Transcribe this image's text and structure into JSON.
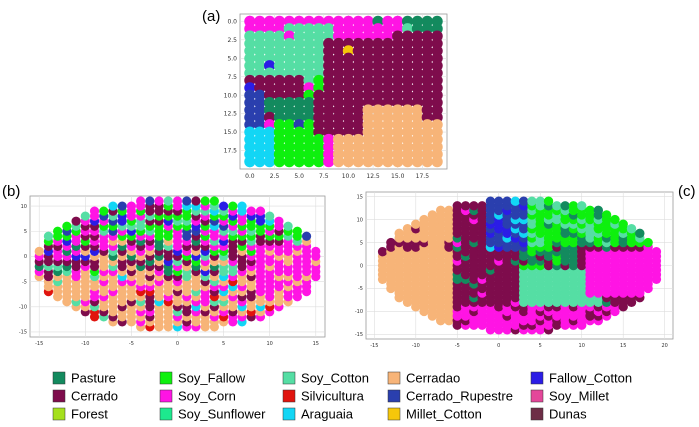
{
  "chart_data": [
    {
      "type": "scatter",
      "panel_label": "(a)",
      "xlim": [
        -1,
        20
      ],
      "ylim": [
        20,
        -1
      ],
      "x_ticks": [
        "0.0",
        "2.5",
        "5.0",
        "7.5",
        "10.0",
        "12.5",
        "15.0",
        "17.5"
      ],
      "x_tick_values": [
        0,
        2.5,
        5,
        7.5,
        10,
        12.5,
        15,
        17.5
      ],
      "y_ticks": [
        "0.0",
        "2.5",
        "5.0",
        "7.5",
        "10.0",
        "12.5",
        "15.0",
        "17.5"
      ],
      "y_tick_values": [
        0,
        2.5,
        5,
        7.5,
        10,
        12.5,
        15,
        17.5
      ],
      "grid": true,
      "grid_size": [
        20,
        20
      ],
      "background_class": "Soy_Corn"
    },
    {
      "type": "scatter",
      "panel_label": "(b)",
      "xlim": [
        -16,
        16
      ],
      "ylim": [
        -16,
        12
      ],
      "x_ticks": [
        "-15",
        "-10",
        "-5",
        "0",
        "5",
        "10",
        "15"
      ],
      "x_tick_values": [
        -15,
        -10,
        -5,
        0,
        5,
        10,
        15
      ],
      "y_ticks": [
        "10",
        "5",
        "0",
        "-5",
        "-10",
        "-15"
      ],
      "y_tick_values": [
        10,
        5,
        0,
        -5,
        -10,
        -15
      ],
      "grid": true,
      "shape": "ellipse"
    },
    {
      "type": "scatter",
      "panel_label": "(c)",
      "xlim": [
        -16,
        21
      ],
      "ylim": [
        -16,
        16
      ],
      "x_ticks": [
        "-15",
        "-10",
        "-5",
        "0",
        "5",
        "10",
        "15",
        "20"
      ],
      "x_tick_values": [
        -15,
        -10,
        -5,
        0,
        5,
        10,
        15,
        20
      ],
      "y_ticks": [
        "15",
        "10",
        "5",
        "0",
        "-5",
        "-10",
        "-15"
      ],
      "y_tick_values": [
        15,
        10,
        5,
        0,
        -5,
        -10,
        -15
      ],
      "grid": true,
      "shape": "ellipse"
    }
  ],
  "legend": [
    {
      "name": "Pasture",
      "color": "#138a5e"
    },
    {
      "name": "Cerrado",
      "color": "#7e0c4c"
    },
    {
      "name": "Forest",
      "color": "#a5e01d"
    },
    {
      "name": "Soy_Fallow",
      "color": "#0ef00e"
    },
    {
      "name": "Soy_Corn",
      "color": "#ff14e4"
    },
    {
      "name": "Soy_Sunflower",
      "color": "#1de98e"
    },
    {
      "name": "Soy_Cotton",
      "color": "#55dea4"
    },
    {
      "name": "Silvicultura",
      "color": "#e0140e"
    },
    {
      "name": "Araguaia",
      "color": "#12d6f5"
    },
    {
      "name": "Cerradao",
      "color": "#f7b478"
    },
    {
      "name": "Cerrado_Rupestre",
      "color": "#2a3fae"
    },
    {
      "name": "Millet_Cotton",
      "color": "#f5c70a"
    },
    {
      "name": "Fallow_Cotton",
      "color": "#2b1de6"
    },
    {
      "name": "Soy_Millet",
      "color": "#e4479a"
    },
    {
      "name": "Dunas",
      "color": "#6d2d46"
    }
  ]
}
